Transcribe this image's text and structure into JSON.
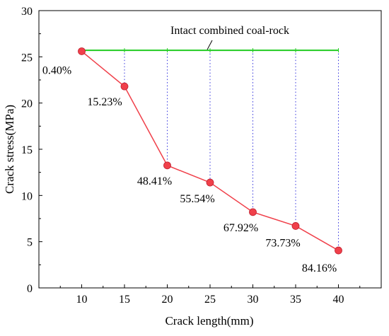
{
  "chart_data": {
    "type": "line",
    "xlabel": "Crack length(mm)",
    "ylabel": "Crack stress(MPa)",
    "xlim": [
      5,
      45
    ],
    "ylim": [
      0,
      30
    ],
    "x_ticks": [
      10,
      15,
      20,
      25,
      30,
      35,
      40
    ],
    "y_ticks": [
      0,
      5,
      10,
      15,
      20,
      25,
      30
    ],
    "grid": false,
    "series": [
      {
        "x": [
          10,
          15,
          20,
          25,
          30,
          35,
          40
        ],
        "y": [
          25.6,
          21.8,
          13.25,
          11.4,
          8.2,
          6.7,
          4.05
        ],
        "labels": [
          "0.40%",
          "15.23%",
          "48.41%",
          "55.54%",
          "67.92%",
          "73.73%",
          "84.16%"
        ],
        "color": "#f0404a"
      },
      {
        "name": "Intact combined coal-rock",
        "x": [
          10,
          40
        ],
        "y": [
          25.7,
          25.7
        ],
        "color": "#22cc22"
      }
    ],
    "guide_line_color": "#3333dd",
    "annotation": "Intact combined coal-rock"
  }
}
